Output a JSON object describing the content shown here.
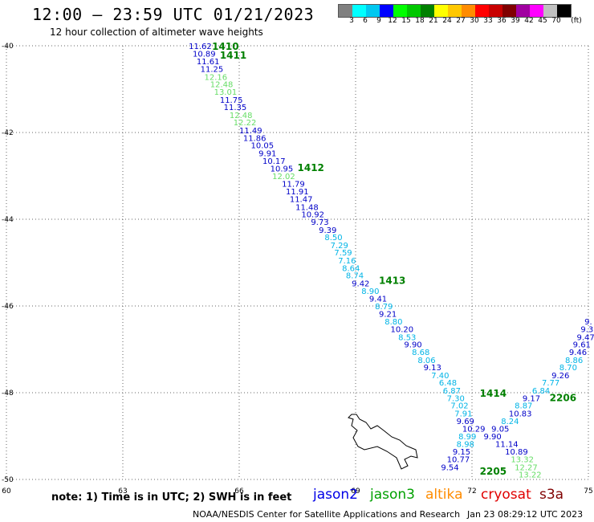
{
  "header": {
    "title": "12:00 – 23:59 UTC 01/21/2023",
    "subtitle": "12 hour collection of altimeter wave heights"
  },
  "scale": {
    "unit": "(ft)",
    "colors": [
      "#808080",
      "#00ffff",
      "#00c8f0",
      "#0000ff",
      "#00ff00",
      "#00c800",
      "#008000",
      "#ffff00",
      "#ffc800",
      "#ff8c00",
      "#ff0000",
      "#c80000",
      "#800000",
      "#a000a0",
      "#ff00ff",
      "#c0c0c0",
      "#000000"
    ],
    "labels": [
      "3",
      "6",
      "9",
      "12",
      "15",
      "18",
      "21",
      "24",
      "27",
      "30",
      "33",
      "36",
      "39",
      "42",
      "45",
      "70"
    ]
  },
  "map": {
    "lon_range": [
      60,
      75
    ],
    "lat_range": [
      -50,
      -40
    ],
    "lon_ticks": [
      "60",
      "63",
      "66",
      "69",
      "72",
      "75"
    ],
    "lat_ticks": [
      "-40",
      "-42",
      "-44",
      "-46",
      "-48",
      "-50"
    ],
    "passes": [
      {
        "id": "1410",
        "color": "#008000",
        "lat": -40.0,
        "lon": 65.3
      },
      {
        "id": "1411",
        "color": "#008000",
        "lat": -40.2,
        "lon": 65.5
      },
      {
        "id": "1412",
        "color": "#008000",
        "lat": -42.8,
        "lon": 67.5
      },
      {
        "id": "1413",
        "color": "#008000",
        "lat": -45.4,
        "lon": 69.6
      },
      {
        "id": "1414",
        "color": "#008000",
        "lat": -48.0,
        "lon": 72.2
      },
      {
        "id": "2206",
        "color": "#008000",
        "lat": -48.1,
        "lon": 74.0
      },
      {
        "id": "2205",
        "color": "#008000",
        "lat": -49.8,
        "lon": 72.2
      }
    ],
    "track1": [
      {
        "v": "11.62",
        "c": "#0000c8",
        "lat": -40.0,
        "lon": 64.7
      },
      {
        "v": "10.89",
        "c": "#0000c8",
        "lat": -40.18,
        "lon": 64.8
      },
      {
        "v": "11.61",
        "c": "#0000c8",
        "lat": -40.35,
        "lon": 64.9
      },
      {
        "v": "11.25",
        "c": "#0000c8",
        "lat": -40.53,
        "lon": 65.0
      },
      {
        "v": "12.16",
        "c": "#66dd66",
        "lat": -40.71,
        "lon": 65.1
      },
      {
        "v": "12.48",
        "c": "#66dd66",
        "lat": -40.88,
        "lon": 65.25
      },
      {
        "v": "13.01",
        "c": "#66dd66",
        "lat": -41.06,
        "lon": 65.35
      },
      {
        "v": "11.75",
        "c": "#0000c8",
        "lat": -41.24,
        "lon": 65.5
      },
      {
        "v": "11.35",
        "c": "#0000c8",
        "lat": -41.41,
        "lon": 65.6
      },
      {
        "v": "12.48",
        "c": "#66dd66",
        "lat": -41.59,
        "lon": 65.75
      },
      {
        "v": "12.22",
        "c": "#66dd66",
        "lat": -41.76,
        "lon": 65.85
      },
      {
        "v": "11.49",
        "c": "#0000c8",
        "lat": -41.94,
        "lon": 66.0
      },
      {
        "v": "11.86",
        "c": "#0000c8",
        "lat": -42.12,
        "lon": 66.1
      },
      {
        "v": "10.05",
        "c": "#0000c8",
        "lat": -42.29,
        "lon": 66.3
      },
      {
        "v": "9.91",
        "c": "#0000c8",
        "lat": -42.47,
        "lon": 66.5
      },
      {
        "v": "10.17",
        "c": "#0000c8",
        "lat": -42.65,
        "lon": 66.6
      },
      {
        "v": "10.95",
        "c": "#0000c8",
        "lat": -42.82,
        "lon": 66.8
      },
      {
        "v": "12.02",
        "c": "#66dd66",
        "lat": -43.0,
        "lon": 66.85
      },
      {
        "v": "11.79",
        "c": "#0000c8",
        "lat": -43.18,
        "lon": 67.1
      },
      {
        "v": "11.91",
        "c": "#0000c8",
        "lat": -43.35,
        "lon": 67.2
      },
      {
        "v": "11.47",
        "c": "#0000c8",
        "lat": -43.53,
        "lon": 67.3
      },
      {
        "v": "11.48",
        "c": "#0000c8",
        "lat": -43.71,
        "lon": 67.45
      },
      {
        "v": "10.92",
        "c": "#0000c8",
        "lat": -43.88,
        "lon": 67.6
      },
      {
        "v": "9.73",
        "c": "#0000c8",
        "lat": -44.06,
        "lon": 67.85
      },
      {
        "v": "9.39",
        "c": "#0000c8",
        "lat": -44.24,
        "lon": 68.05
      },
      {
        "v": "8.50",
        "c": "#00b4e6",
        "lat": -44.41,
        "lon": 68.2
      },
      {
        "v": "7.29",
        "c": "#00b4e6",
        "lat": -44.59,
        "lon": 68.35
      },
      {
        "v": "7.59",
        "c": "#00b4e6",
        "lat": -44.76,
        "lon": 68.45
      },
      {
        "v": "7.16",
        "c": "#00b4e6",
        "lat": -44.94,
        "lon": 68.55
      },
      {
        "v": "8.64",
        "c": "#00b4e6",
        "lat": -45.12,
        "lon": 68.65
      },
      {
        "v": "8.74",
        "c": "#00b4e6",
        "lat": -45.29,
        "lon": 68.75
      },
      {
        "v": "9.42",
        "c": "#0000c8",
        "lat": -45.47,
        "lon": 68.9
      },
      {
        "v": "8.90",
        "c": "#00b4e6",
        "lat": -45.65,
        "lon": 69.15
      },
      {
        "v": "9.41",
        "c": "#0000c8",
        "lat": -45.82,
        "lon": 69.35
      },
      {
        "v": "8.79",
        "c": "#00b4e6",
        "lat": -46.0,
        "lon": 69.5
      },
      {
        "v": "9.21",
        "c": "#0000c8",
        "lat": -46.18,
        "lon": 69.6
      },
      {
        "v": "8.80",
        "c": "#00b4e6",
        "lat": -46.35,
        "lon": 69.75
      },
      {
        "v": "10.20",
        "c": "#0000c8",
        "lat": -46.53,
        "lon": 69.9
      },
      {
        "v": "8.53",
        "c": "#00b4e6",
        "lat": -46.71,
        "lon": 70.1
      },
      {
        "v": "9.90",
        "c": "#0000c8",
        "lat": -46.88,
        "lon": 70.25
      },
      {
        "v": "8.68",
        "c": "#00b4e6",
        "lat": -47.06,
        "lon": 70.45
      },
      {
        "v": "8.06",
        "c": "#00b4e6",
        "lat": -47.24,
        "lon": 70.6
      },
      {
        "v": "9.13",
        "c": "#0000c8",
        "lat": -47.41,
        "lon": 70.75
      },
      {
        "v": "7.40",
        "c": "#00b4e6",
        "lat": -47.59,
        "lon": 70.95
      },
      {
        "v": "6.48",
        "c": "#00b4e6",
        "lat": -47.76,
        "lon": 71.15
      },
      {
        "v": "6.87",
        "c": "#00b4e6",
        "lat": -47.94,
        "lon": 71.25
      },
      {
        "v": "7.30",
        "c": "#00b4e6",
        "lat": -48.12,
        "lon": 71.35
      },
      {
        "v": "7.02",
        "c": "#00b4e6",
        "lat": -48.29,
        "lon": 71.45
      },
      {
        "v": "7.91",
        "c": "#00b4e6",
        "lat": -48.47,
        "lon": 71.55
      },
      {
        "v": "9.69",
        "c": "#0000c8",
        "lat": -48.65,
        "lon": 71.6
      },
      {
        "v": "10.29",
        "c": "#0000c8",
        "lat": -48.82,
        "lon": 71.75
      },
      {
        "v": "8.99",
        "c": "#00b4e6",
        "lat": -49.0,
        "lon": 71.65
      },
      {
        "v": "8.98",
        "c": "#00b4e6",
        "lat": -49.18,
        "lon": 71.6
      },
      {
        "v": "9.15",
        "c": "#0000c8",
        "lat": -49.35,
        "lon": 71.5
      },
      {
        "v": "10.77",
        "c": "#0000c8",
        "lat": -49.53,
        "lon": 71.35
      },
      {
        "v": "9.54",
        "c": "#0000c8",
        "lat": -49.71,
        "lon": 71.2
      }
    ],
    "track2": [
      {
        "v": "9.",
        "c": "#0000c8",
        "lat": -46.35,
        "lon": 74.9
      },
      {
        "v": "9.3",
        "c": "#0000c8",
        "lat": -46.53,
        "lon": 74.8
      },
      {
        "v": "9.47",
        "c": "#0000c8",
        "lat": -46.71,
        "lon": 74.7
      },
      {
        "v": "9.61",
        "c": "#0000c8",
        "lat": -46.88,
        "lon": 74.6
      },
      {
        "v": "9.46",
        "c": "#0000c8",
        "lat": -47.06,
        "lon": 74.5
      },
      {
        "v": "8.86",
        "c": "#00b4e6",
        "lat": -47.24,
        "lon": 74.4
      },
      {
        "v": "8.70",
        "c": "#00b4e6",
        "lat": -47.41,
        "lon": 74.25
      },
      {
        "v": "9.26",
        "c": "#0000c8",
        "lat": -47.59,
        "lon": 74.05
      },
      {
        "v": "7.77",
        "c": "#00b4e6",
        "lat": -47.76,
        "lon": 73.8
      },
      {
        "v": "6.84",
        "c": "#00b4e6",
        "lat": -47.94,
        "lon": 73.55
      },
      {
        "v": "9.17",
        "c": "#0000c8",
        "lat": -48.12,
        "lon": 73.3
      },
      {
        "v": "8.87",
        "c": "#00b4e6",
        "lat": -48.29,
        "lon": 73.1
      },
      {
        "v": "10.83",
        "c": "#0000c8",
        "lat": -48.47,
        "lon": 72.95
      },
      {
        "v": "8.24",
        "c": "#00b4e6",
        "lat": -48.65,
        "lon": 72.75
      },
      {
        "v": "9.05",
        "c": "#0000c8",
        "lat": -48.82,
        "lon": 72.5
      },
      {
        "v": "9.90",
        "c": "#0000c8",
        "lat": -49.0,
        "lon": 72.3
      },
      {
        "v": "11.14",
        "c": "#0000c8",
        "lat": -49.18,
        "lon": 72.6
      },
      {
        "v": "10.89",
        "c": "#0000c8",
        "lat": -49.35,
        "lon": 72.85
      },
      {
        "v": "13.32",
        "c": "#66dd66",
        "lat": -49.53,
        "lon": 73.0
      },
      {
        "v": "12.27",
        "c": "#66dd66",
        "lat": -49.71,
        "lon": 73.1
      },
      {
        "v": "13.22",
        "c": "#66dd66",
        "lat": -49.88,
        "lon": 73.2
      }
    ]
  },
  "footer": {
    "note": "note: 1) Time is in UTC; 2) SWH is in feet",
    "satellites": [
      {
        "name": "jason2",
        "color": "#0000e6"
      },
      {
        "name": "jason3",
        "color": "#00a000"
      },
      {
        "name": "altika",
        "color": "#ff8c00"
      },
      {
        "name": "cryosat",
        "color": "#e00000"
      },
      {
        "name": "s3a",
        "color": "#800000"
      }
    ],
    "credit": "NOAA/NESDIS Center for Satellite Applications and Research",
    "runtime": "Jan 23 08:29:12 UTC 2023"
  }
}
